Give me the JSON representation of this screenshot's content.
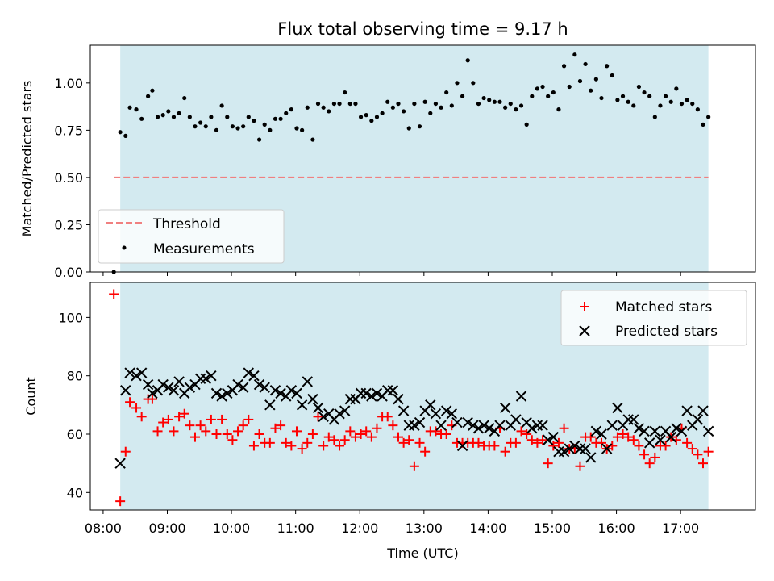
{
  "chart_data": [
    {
      "type": "scatter",
      "title": "Flux total observing time = 9.17 h",
      "xlabel": "",
      "ylabel": "Matched/Predicted stars",
      "xlim": [
        "07:48",
        "18:10"
      ],
      "ylim": [
        0,
        1.2
      ],
      "yticks": [
        "0.00",
        "0.25",
        "0.50",
        "0.75",
        "1.00"
      ],
      "observing_window": [
        "08:16",
        "17:26"
      ],
      "colors": {
        "window": "#d3eaf0",
        "threshold": "#f08080",
        "points": "#000000"
      },
      "legend": {
        "placement": "lower-left",
        "entries": [
          "Threshold",
          "Measurements"
        ]
      },
      "threshold": {
        "name": "Threshold",
        "value": 0.5,
        "x": [
          "08:10",
          "17:26"
        ]
      },
      "series": [
        {
          "name": "Measurements",
          "x": [
            "08:10",
            "08:16",
            "08:21",
            "08:25",
            "08:31",
            "08:36",
            "08:42",
            "08:46",
            "08:51",
            "08:56",
            "09:01",
            "09:06",
            "09:11",
            "09:16",
            "09:21",
            "09:26",
            "09:31",
            "09:36",
            "09:41",
            "09:46",
            "09:51",
            "09:56",
            "10:01",
            "10:06",
            "10:11",
            "10:16",
            "10:21",
            "10:26",
            "10:31",
            "10:36",
            "10:41",
            "10:46",
            "10:51",
            "10:56",
            "11:01",
            "11:06",
            "11:11",
            "11:16",
            "11:21",
            "11:26",
            "11:31",
            "11:36",
            "11:41",
            "11:46",
            "11:51",
            "11:56",
            "12:01",
            "12:06",
            "12:11",
            "12:16",
            "12:21",
            "12:26",
            "12:31",
            "12:36",
            "12:41",
            "12:46",
            "12:51",
            "12:56",
            "13:01",
            "13:06",
            "13:11",
            "13:16",
            "13:21",
            "13:26",
            "13:31",
            "13:36",
            "13:41",
            "13:46",
            "13:51",
            "13:56",
            "14:01",
            "14:06",
            "14:11",
            "14:16",
            "14:21",
            "14:26",
            "14:31",
            "14:36",
            "14:41",
            "14:46",
            "14:51",
            "14:56",
            "15:01",
            "15:06",
            "15:11",
            "15:16",
            "15:21",
            "15:26",
            "15:31",
            "15:36",
            "15:41",
            "15:46",
            "15:51",
            "15:56",
            "16:01",
            "16:06",
            "16:11",
            "16:16",
            "16:21",
            "16:26",
            "16:31",
            "16:36",
            "16:41",
            "16:46",
            "16:51",
            "16:56",
            "17:01",
            "17:06",
            "17:11",
            "17:16",
            "17:21",
            "17:26"
          ],
          "y": [
            0.0,
            0.74,
            0.72,
            0.87,
            0.86,
            0.81,
            0.93,
            0.96,
            0.82,
            0.83,
            0.85,
            0.82,
            0.84,
            0.92,
            0.82,
            0.77,
            0.79,
            0.77,
            0.82,
            0.75,
            0.88,
            0.82,
            0.77,
            0.76,
            0.77,
            0.82,
            0.8,
            0.7,
            0.78,
            0.75,
            0.81,
            0.81,
            0.84,
            0.86,
            0.76,
            0.75,
            0.87,
            0.7,
            0.89,
            0.87,
            0.85,
            0.89,
            0.89,
            0.95,
            0.89,
            0.89,
            0.82,
            0.83,
            0.8,
            0.82,
            0.84,
            0.9,
            0.87,
            0.89,
            0.85,
            0.76,
            0.89,
            0.77,
            0.9,
            0.84,
            0.89,
            0.87,
            0.95,
            0.88,
            1.0,
            0.93,
            1.12,
            1.0,
            0.89,
            0.92,
            0.91,
            0.9,
            0.9,
            0.87,
            0.89,
            0.86,
            0.88,
            0.78,
            0.93,
            0.97,
            0.98,
            0.93,
            0.95,
            0.86,
            1.09,
            0.98,
            1.15,
            1.01,
            1.1,
            0.96,
            1.02,
            0.92,
            1.09,
            1.04,
            0.91,
            0.93,
            0.9,
            0.88,
            0.98,
            0.95,
            0.93,
            0.82,
            0.88,
            0.93,
            0.9,
            0.97,
            0.89,
            0.91,
            0.89,
            0.86,
            0.78,
            0.82
          ]
        }
      ]
    },
    {
      "type": "scatter",
      "title": "",
      "xlabel": "Time (UTC)",
      "ylabel": "Count",
      "xlim": [
        "07:48",
        "18:10"
      ],
      "ylim": [
        34,
        112
      ],
      "yticks": [
        "40",
        "60",
        "80",
        "100"
      ],
      "xticks": [
        "08:00",
        "09:00",
        "10:00",
        "11:00",
        "12:00",
        "13:00",
        "14:00",
        "15:00",
        "16:00",
        "17:00"
      ],
      "legend": {
        "placement": "upper-right",
        "entries": [
          "Matched stars",
          "Predicted stars"
        ]
      },
      "colors": {
        "matched": "#ff0000",
        "predicted": "#000000"
      },
      "series": [
        {
          "name": "Matched stars",
          "marker": "+",
          "x": [
            "08:10",
            "08:16",
            "08:21",
            "08:25",
            "08:31",
            "08:36",
            "08:42",
            "08:46",
            "08:51",
            "08:56",
            "09:01",
            "09:06",
            "09:11",
            "09:16",
            "09:21",
            "09:26",
            "09:31",
            "09:36",
            "09:41",
            "09:46",
            "09:51",
            "09:56",
            "10:01",
            "10:06",
            "10:11",
            "10:16",
            "10:21",
            "10:26",
            "10:31",
            "10:36",
            "10:41",
            "10:46",
            "10:51",
            "10:56",
            "11:01",
            "11:06",
            "11:11",
            "11:16",
            "11:21",
            "11:26",
            "11:31",
            "11:36",
            "11:41",
            "11:46",
            "11:51",
            "11:56",
            "12:01",
            "12:06",
            "12:11",
            "12:16",
            "12:21",
            "12:26",
            "12:31",
            "12:36",
            "12:41",
            "12:46",
            "12:51",
            "12:56",
            "13:01",
            "13:06",
            "13:11",
            "13:16",
            "13:21",
            "13:26",
            "13:31",
            "13:36",
            "13:41",
            "13:46",
            "13:51",
            "13:56",
            "14:01",
            "14:06",
            "14:11",
            "14:16",
            "14:21",
            "14:26",
            "14:31",
            "14:36",
            "14:41",
            "14:46",
            "14:51",
            "14:56",
            "15:01",
            "15:06",
            "15:11",
            "15:16",
            "15:21",
            "15:26",
            "15:31",
            "15:36",
            "15:41",
            "15:46",
            "15:51",
            "15:56",
            "16:01",
            "16:06",
            "16:11",
            "16:16",
            "16:21",
            "16:26",
            "16:31",
            "16:36",
            "16:41",
            "16:46",
            "16:51",
            "16:56",
            "17:01",
            "17:06",
            "17:11",
            "17:16",
            "17:21",
            "17:26"
          ],
          "y": [
            108,
            37,
            54,
            71,
            69,
            66,
            72,
            72,
            61,
            64,
            65,
            61,
            66,
            67,
            63,
            59,
            63,
            61,
            65,
            60,
            65,
            60,
            58,
            61,
            63,
            65,
            56,
            60,
            57,
            57,
            62,
            63,
            57,
            56,
            61,
            55,
            57,
            60,
            66,
            56,
            59,
            58,
            56,
            58,
            61,
            59,
            60,
            61,
            59,
            62,
            66,
            66,
            63,
            59,
            57,
            58,
            49,
            57,
            54,
            61,
            61,
            60,
            60,
            63,
            57,
            57,
            57,
            57,
            57,
            56,
            56,
            56,
            62,
            54,
            57,
            57,
            61,
            60,
            58,
            57,
            58,
            50,
            56,
            57,
            62,
            55,
            55,
            49,
            59,
            59,
            57,
            57,
            55,
            56,
            59,
            60,
            59,
            58,
            56,
            53,
            50,
            52,
            56,
            56,
            59,
            58,
            62,
            57,
            55,
            53,
            50,
            54
          ],
          "note_last_two_x": ""
        },
        {
          "name": "Predicted stars",
          "marker": "x",
          "x": [
            "08:16",
            "08:21",
            "08:25",
            "08:31",
            "08:36",
            "08:42",
            "08:46",
            "08:51",
            "08:56",
            "09:01",
            "09:06",
            "09:11",
            "09:16",
            "09:21",
            "09:26",
            "09:31",
            "09:36",
            "09:41",
            "09:46",
            "09:51",
            "09:56",
            "10:01",
            "10:06",
            "10:11",
            "10:16",
            "10:21",
            "10:26",
            "10:31",
            "10:36",
            "10:41",
            "10:46",
            "10:51",
            "10:56",
            "11:01",
            "11:06",
            "11:11",
            "11:16",
            "11:21",
            "11:26",
            "11:31",
            "11:36",
            "11:41",
            "11:46",
            "11:51",
            "11:56",
            "12:01",
            "12:06",
            "12:11",
            "12:16",
            "12:21",
            "12:26",
            "12:31",
            "12:36",
            "12:41",
            "12:46",
            "12:51",
            "12:56",
            "13:01",
            "13:06",
            "13:11",
            "13:16",
            "13:21",
            "13:26",
            "13:31",
            "13:36",
            "13:41",
            "13:46",
            "13:51",
            "13:56",
            "14:01",
            "14:06",
            "14:11",
            "14:16",
            "14:21",
            "14:26",
            "14:31",
            "14:36",
            "14:41",
            "14:46",
            "14:51",
            "14:56",
            "15:01",
            "15:06",
            "15:11",
            "15:16",
            "15:21",
            "15:26",
            "15:31",
            "15:36",
            "15:41",
            "15:46",
            "15:51",
            "15:56",
            "16:01",
            "16:06",
            "16:11",
            "16:16",
            "16:21",
            "16:26",
            "16:31",
            "16:36",
            "16:41",
            "16:46",
            "16:51",
            "16:56",
            "17:01",
            "17:06",
            "17:11",
            "17:16",
            "17:21",
            "17:26"
          ],
          "y": [
            50,
            75,
            81,
            80,
            81,
            77,
            74,
            75,
            77,
            76,
            75,
            78,
            74,
            76,
            77,
            79,
            79,
            80,
            74,
            73,
            74,
            75,
            77,
            76,
            81,
            80,
            77,
            76,
            70,
            75,
            74,
            73,
            75,
            74,
            70,
            78,
            72,
            69,
            66,
            67,
            65,
            67,
            68,
            72,
            72,
            74,
            74,
            73,
            74,
            73,
            75,
            75,
            72,
            68,
            63,
            63,
            64,
            68,
            70,
            67,
            63,
            68,
            67,
            64,
            56,
            64,
            63,
            62,
            63,
            62,
            61,
            63,
            69,
            63,
            65,
            73,
            64,
            62,
            63,
            63,
            58,
            59,
            54,
            54,
            55,
            56,
            55,
            55,
            52,
            61,
            60,
            55,
            63,
            69,
            63,
            65,
            65,
            62,
            61,
            57,
            61,
            58,
            61,
            59,
            62,
            61,
            68,
            63,
            65,
            68,
            61
          ]
        }
      ]
    }
  ]
}
